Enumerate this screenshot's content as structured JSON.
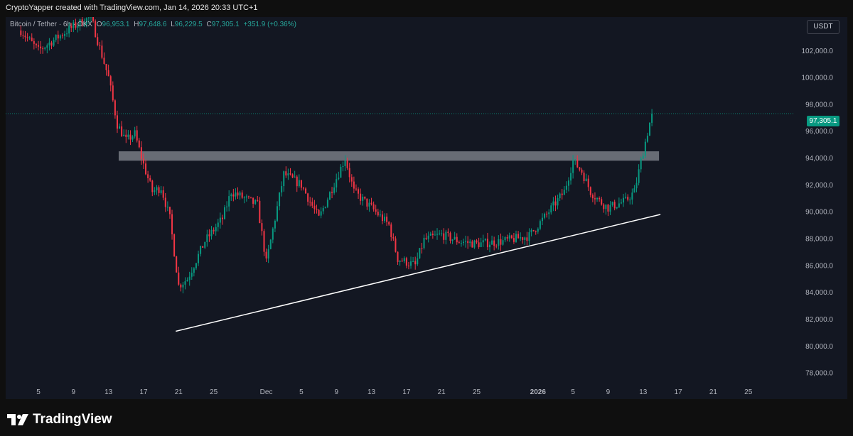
{
  "header": {
    "attribution": "CryptoYapper created with TradingView.com, Jan 14, 2026 20:33 UTC+1"
  },
  "legend": {
    "symbol": "Bitcoin / Tether · 6h · OKX",
    "o_label": "O",
    "o_value": "96,953.1",
    "h_label": "H",
    "h_value": "97,648.6",
    "l_label": "L",
    "l_value": "96,229.5",
    "c_label": "C",
    "c_value": "97,305.1",
    "change": "+351.9 (+0.36%)"
  },
  "currency": "USDT",
  "last_price_label": "97,305.1",
  "footer": {
    "brand": "TradingView"
  },
  "colors": {
    "up": "#089981",
    "down": "#f23645",
    "background": "#131722",
    "zone": "#d1d4dc"
  },
  "chart_data": {
    "type": "candlestick",
    "symbol": "Bitcoin / Tether",
    "interval": "6h",
    "exchange": "OKX",
    "y_axis": {
      "range": [
        77000,
        104500
      ],
      "ticks": [
        "102,000.0",
        "100,000.0",
        "98,000.0",
        "96,000.0",
        "94,000.0",
        "92,000.0",
        "90,000.0",
        "88,000.0",
        "86,000.0",
        "84,000.0",
        "82,000.0",
        "80,000.0",
        "78,000.0"
      ]
    },
    "x_axis": {
      "ticks": [
        "5",
        "9",
        "13",
        "17",
        "21",
        "25",
        "Dec",
        "5",
        "9",
        "13",
        "17",
        "21",
        "25",
        "2026",
        "5",
        "9",
        "13",
        "17",
        "21",
        "25"
      ],
      "bold_ticks": [
        "2026"
      ]
    },
    "last_price": 97305.1,
    "grid": false,
    "approx_close_path": [
      {
        "date": "Nov 3",
        "close": 103500
      },
      {
        "date": "Nov 5",
        "close": 102000
      },
      {
        "date": "Nov 9",
        "close": 103800
      },
      {
        "date": "Nov 11",
        "close": 104500
      },
      {
        "date": "Nov 12",
        "close": 102200
      },
      {
        "date": "Nov 13",
        "close": 100000
      },
      {
        "date": "Nov 14",
        "close": 96500
      },
      {
        "date": "Nov 15",
        "close": 95300
      },
      {
        "date": "Nov 16",
        "close": 95800
      },
      {
        "date": "Nov 17",
        "close": 93500
      },
      {
        "date": "Nov 18",
        "close": 91500
      },
      {
        "date": "Nov 19",
        "close": 91800
      },
      {
        "date": "Nov 20",
        "close": 89500
      },
      {
        "date": "Nov 21",
        "close": 84500
      },
      {
        "date": "Nov 22",
        "close": 85000
      },
      {
        "date": "Nov 24",
        "close": 87800
      },
      {
        "date": "Nov 26",
        "close": 89500
      },
      {
        "date": "Nov 27",
        "close": 91500
      },
      {
        "date": "Nov 30",
        "close": 90500
      },
      {
        "date": "Dec 1",
        "close": 86200
      },
      {
        "date": "Dec 3",
        "close": 92800
      },
      {
        "date": "Dec 5",
        "close": 92000
      },
      {
        "date": "Dec 7",
        "close": 89500
      },
      {
        "date": "Dec 9",
        "close": 92500
      },
      {
        "date": "Dec 10",
        "close": 94000
      },
      {
        "date": "Dec 11",
        "close": 91500
      },
      {
        "date": "Dec 13",
        "close": 90300
      },
      {
        "date": "Dec 15",
        "close": 89000
      },
      {
        "date": "Dec 16",
        "close": 86500
      },
      {
        "date": "Dec 18",
        "close": 86000
      },
      {
        "date": "Dec 19",
        "close": 87900
      },
      {
        "date": "Dec 21",
        "close": 88300
      },
      {
        "date": "Dec 23",
        "close": 87800
      },
      {
        "date": "Dec 25",
        "close": 87600
      },
      {
        "date": "Dec 28",
        "close": 87800
      },
      {
        "date": "Dec 31",
        "close": 88200
      },
      {
        "date": "Jan 2",
        "close": 89800
      },
      {
        "date": "Jan 4",
        "close": 91500
      },
      {
        "date": "Jan 5",
        "close": 93800
      },
      {
        "date": "Jan 6",
        "close": 93000
      },
      {
        "date": "Jan 7",
        "close": 91500
      },
      {
        "date": "Jan 8",
        "close": 90800
      },
      {
        "date": "Jan 9",
        "close": 90300
      },
      {
        "date": "Jan 11",
        "close": 90800
      },
      {
        "date": "Jan 12",
        "close": 91500
      },
      {
        "date": "Jan 13",
        "close": 94500
      },
      {
        "date": "Jan 14",
        "close": 97305.1
      }
    ],
    "resistance_zone": {
      "low": 93800,
      "high": 94500,
      "from_date": "Nov 14",
      "to_date": "Jan 14"
    },
    "support_trendline": {
      "from": {
        "date": "Nov 21",
        "price": 81100
      },
      "to": {
        "date": "Jan 14",
        "price": 89800
      }
    }
  }
}
